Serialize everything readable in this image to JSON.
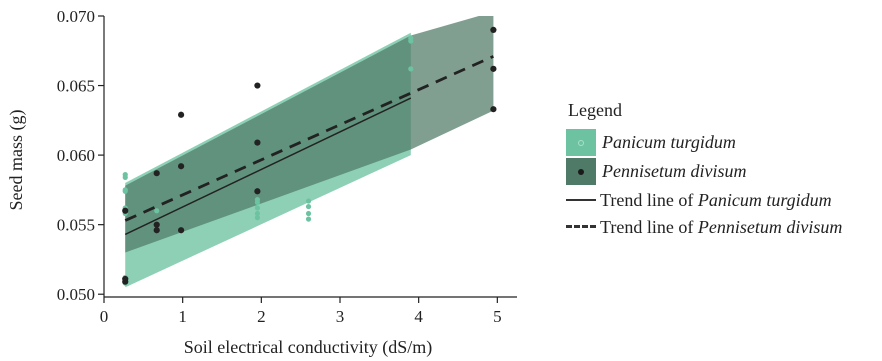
{
  "chart_data": {
    "type": "scatter",
    "xlabel": "Soil electrical conductivity (dS/m)",
    "ylabel": "Seed mass (g)",
    "xlim": [
      0,
      5.25
    ],
    "ylim": [
      0.0498,
      0.07
    ],
    "xticks": [
      0,
      1,
      2,
      3,
      4,
      5
    ],
    "yticks": [
      0.05,
      0.055,
      0.06,
      0.065,
      0.07
    ],
    "ytick_labels": [
      "0.050",
      "0.055",
      "0.060",
      "0.065",
      "0.070"
    ],
    "legend": {
      "title": "Legend",
      "position": "right",
      "entries": [
        {
          "prefix": "",
          "italic": "Panicum turgidum",
          "kind": "band-point"
        },
        {
          "prefix": "",
          "italic": "Pennisetum divisum",
          "kind": "band-point"
        },
        {
          "prefix": "Trend line of ",
          "italic": "Panicum turgidum",
          "kind": "solid-line"
        },
        {
          "prefix": "Trend line of ",
          "italic": "Pennisetum divisum",
          "kind": "dashed-line"
        }
      ]
    },
    "series": [
      {
        "name": "Panicum turgidum",
        "color": "#6dc3a1",
        "band_color": "#6dc3a1",
        "points": [
          [
            0.27,
            0.0586
          ],
          [
            0.27,
            0.0584
          ],
          [
            0.27,
            0.0575
          ],
          [
            0.27,
            0.0574
          ],
          [
            0.27,
            0.0562
          ],
          [
            0.27,
            0.0558
          ],
          [
            0.27,
            0.0512
          ],
          [
            0.27,
            0.051
          ],
          [
            0.27,
            0.0508
          ],
          [
            0.67,
            0.056
          ],
          [
            0.67,
            0.055
          ],
          [
            1.95,
            0.0568
          ],
          [
            1.95,
            0.0566
          ],
          [
            1.95,
            0.0562
          ],
          [
            1.95,
            0.0558
          ],
          [
            1.95,
            0.0555
          ],
          [
            2.6,
            0.0567
          ],
          [
            2.6,
            0.0563
          ],
          [
            2.6,
            0.0558
          ],
          [
            2.6,
            0.0554
          ],
          [
            3.9,
            0.0702
          ],
          [
            3.9,
            0.0684
          ],
          [
            3.9,
            0.0682
          ],
          [
            3.9,
            0.0662
          ]
        ],
        "trend": {
          "x": [
            0.27,
            3.9
          ],
          "y": [
            0.0543,
            0.0641
          ]
        },
        "ci": {
          "x": [
            0.27,
            3.9
          ],
          "lower": [
            0.0505,
            0.06
          ],
          "upper": [
            0.058,
            0.0688
          ]
        }
      },
      {
        "name": "Pennisetum divisum",
        "color": "#222222",
        "band_color": "#4f7a67",
        "points": [
          [
            0.27,
            0.056
          ],
          [
            0.27,
            0.0511
          ],
          [
            0.27,
            0.0509
          ],
          [
            0.67,
            0.0587
          ],
          [
            0.67,
            0.055
          ],
          [
            0.67,
            0.0546
          ],
          [
            0.98,
            0.0629
          ],
          [
            0.98,
            0.0592
          ],
          [
            0.98,
            0.0546
          ],
          [
            1.95,
            0.065
          ],
          [
            1.95,
            0.0609
          ],
          [
            1.95,
            0.0574
          ],
          [
            4.95,
            0.069
          ],
          [
            4.95,
            0.0662
          ],
          [
            4.95,
            0.0633
          ]
        ],
        "trend": {
          "x": [
            0.27,
            4.95
          ],
          "y": [
            0.0553,
            0.0671
          ]
        },
        "ci": {
          "x": [
            0.27,
            3.9,
            4.95
          ],
          "lower": [
            0.053,
            0.0604,
            0.0632
          ],
          "upper": [
            0.0578,
            0.0686,
            0.0703
          ]
        }
      }
    ]
  }
}
